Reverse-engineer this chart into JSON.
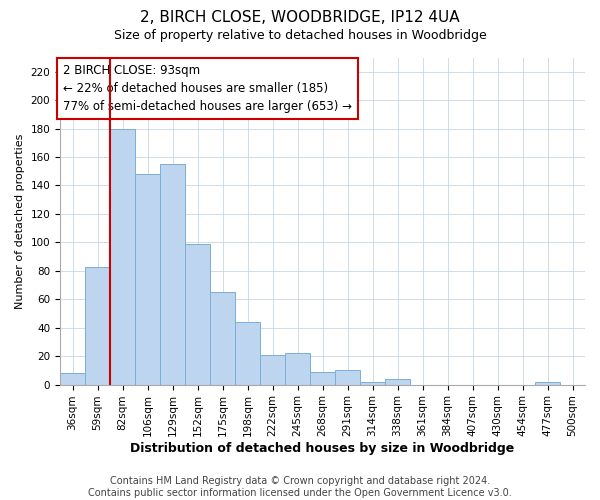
{
  "title": "2, BIRCH CLOSE, WOODBRIDGE, IP12 4UA",
  "subtitle": "Size of property relative to detached houses in Woodbridge",
  "xlabel": "Distribution of detached houses by size in Woodbridge",
  "ylabel": "Number of detached properties",
  "bar_labels": [
    "36sqm",
    "59sqm",
    "82sqm",
    "106sqm",
    "129sqm",
    "152sqm",
    "175sqm",
    "198sqm",
    "222sqm",
    "245sqm",
    "268sqm",
    "291sqm",
    "314sqm",
    "338sqm",
    "361sqm",
    "384sqm",
    "407sqm",
    "430sqm",
    "454sqm",
    "477sqm",
    "500sqm"
  ],
  "bar_values": [
    8,
    83,
    180,
    148,
    155,
    99,
    65,
    44,
    21,
    22,
    9,
    10,
    2,
    4,
    0,
    0,
    0,
    0,
    0,
    2,
    0
  ],
  "bar_color": "#BDD5EE",
  "bar_edge_color": "#7AAFD4",
  "vline_bar_index": 2,
  "vline_color": "#CC0000",
  "ylim": [
    0,
    230
  ],
  "yticks": [
    0,
    20,
    40,
    60,
    80,
    100,
    120,
    140,
    160,
    180,
    200,
    220
  ],
  "annotation_line1": "2 BIRCH CLOSE: 93sqm",
  "annotation_line2": "← 22% of detached houses are smaller (185)",
  "annotation_line3": "77% of semi-detached houses are larger (653) →",
  "footer_line1": "Contains HM Land Registry data © Crown copyright and database right 2024.",
  "footer_line2": "Contains public sector information licensed under the Open Government Licence v3.0.",
  "bg_color": "#FFFFFF",
  "grid_color": "#C8D8E8",
  "title_fontsize": 11,
  "subtitle_fontsize": 9,
  "xlabel_fontsize": 9,
  "ylabel_fontsize": 8,
  "tick_fontsize": 7.5,
  "annotation_fontsize": 8.5,
  "footer_fontsize": 7
}
